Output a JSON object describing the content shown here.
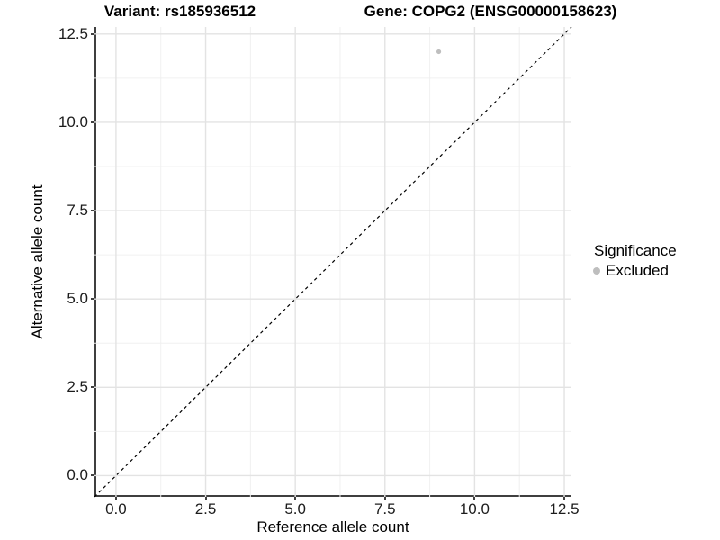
{
  "figure": {
    "title_left": "Variant: rs185936512",
    "title_right": "Gene: COPG2 (ENSG00000158623)"
  },
  "chart_data": {
    "type": "scatter",
    "title_left": "Variant: rs185936512",
    "title_right": "Gene: COPG2 (ENSG00000158623)",
    "xlabel": "Reference allele count",
    "ylabel": "Alternative allele count",
    "xlim": [
      -0.6,
      12.7
    ],
    "ylim": [
      -0.6,
      12.7
    ],
    "x_ticks": [
      0.0,
      2.5,
      5.0,
      7.5,
      10.0,
      12.5
    ],
    "y_ticks": [
      0.0,
      2.5,
      5.0,
      7.5,
      10.0,
      12.5
    ],
    "x_tick_labels": [
      "0.0",
      "2.5",
      "5.0",
      "7.5",
      "10.0",
      "12.5"
    ],
    "y_tick_labels": [
      "0.0",
      "2.5",
      "5.0",
      "7.5",
      "10.0",
      "12.5"
    ],
    "grid": "major-and-minor",
    "legend_position": "right",
    "series": [
      {
        "name": "Excluded",
        "points": [
          {
            "x": 9,
            "y": 12
          }
        ],
        "color": "#bebebe",
        "marker": "circle"
      }
    ],
    "reference_line": {
      "kind": "identity",
      "slope": 1,
      "intercept": 0,
      "style": "dashed",
      "color": "#000000"
    },
    "legend": {
      "title": "Significance",
      "items": [
        {
          "label": "Excluded",
          "color": "#bebebe",
          "marker": "circle"
        }
      ]
    }
  },
  "colors": {
    "background": "#ffffff",
    "axis_line": "#3f3f3f",
    "grid_major": "#e3e3e3",
    "grid_minor": "#f0f0f0",
    "point": "#bebebe",
    "text": "#000000"
  }
}
